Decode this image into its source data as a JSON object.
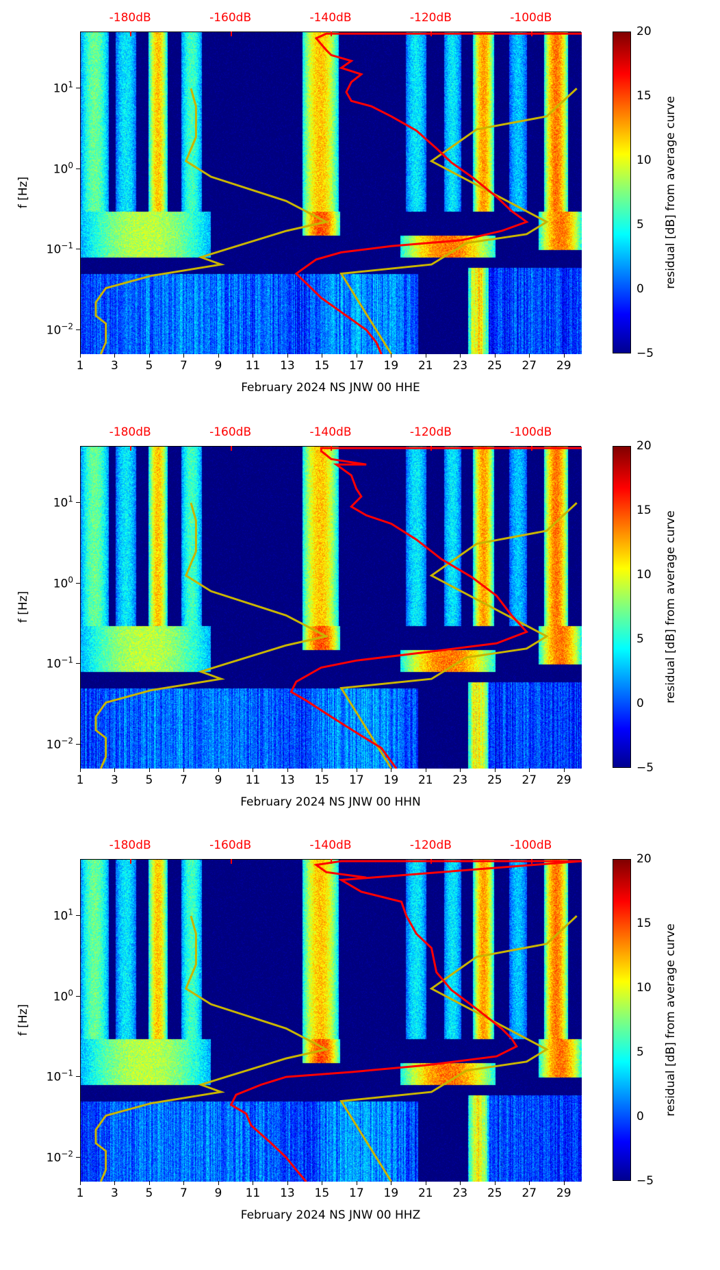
{
  "chart_data": [
    {
      "type": "heatmap",
      "title": "",
      "xlabel": "February 2024 NS JNW 00 HHE",
      "ylabel": "f [Hz]",
      "colorbar_label": "residual [dB] from average curve",
      "xlim": [
        1,
        30
      ],
      "ylim": [
        0.005,
        50
      ],
      "yscale": "log",
      "clim": [
        -5,
        20
      ],
      "red_curve": {
        "db": [
          -90,
          -141,
          -143,
          -141,
          -140,
          -136,
          -138,
          -134,
          -136,
          -137,
          -136,
          -132,
          -128,
          -123,
          -119,
          -116,
          -112,
          -107,
          -104,
          -101,
          -106,
          -114,
          -128,
          -138,
          -143,
          -147,
          -145,
          -142,
          -137,
          -133,
          -131,
          -130
        ],
        "f": [
          48,
          48,
          42,
          30,
          26,
          22,
          18,
          15,
          12,
          9,
          7,
          6,
          4.5,
          3,
          1.8,
          1.2,
          0.8,
          0.45,
          0.3,
          0.22,
          0.17,
          0.13,
          0.11,
          0.092,
          0.075,
          0.05,
          0.038,
          0.025,
          0.015,
          0.01,
          0.007,
          0.005
        ]
      }
    },
    {
      "type": "heatmap",
      "title": "",
      "xlabel": "February 2024 NS JNW 00 HHN",
      "ylabel": "f [Hz]",
      "colorbar_label": "residual [dB] from average curve",
      "xlim": [
        1,
        30
      ],
      "ylim": [
        0.005,
        50
      ],
      "yscale": "log",
      "clim": [
        -5,
        20
      ],
      "red_curve": {
        "db": [
          -90,
          -142,
          -142,
          -140,
          -133,
          -139,
          -136,
          -135,
          -134,
          -136,
          -133,
          -128,
          -123,
          -118,
          -112,
          -107,
          -104,
          -101,
          -107,
          -121,
          -135,
          -142,
          -147,
          -148,
          -145,
          -140,
          -135,
          -130,
          -127
        ],
        "f": [
          48,
          48,
          44,
          35,
          30,
          30,
          22,
          15,
          12,
          9,
          7,
          5.5,
          3.5,
          2,
          1.2,
          0.7,
          0.4,
          0.25,
          0.18,
          0.14,
          0.11,
          0.09,
          0.06,
          0.045,
          0.035,
          0.022,
          0.014,
          0.009,
          0.005
        ]
      }
    },
    {
      "type": "heatmap",
      "title": "",
      "xlabel": "February 2024 NS JNW 00 HHZ",
      "ylabel": "f [Hz]",
      "colorbar_label": "residual [dB] from average curve",
      "xlim": [
        1,
        30
      ],
      "ylim": [
        0.005,
        50
      ],
      "yscale": "log",
      "clim": [
        -5,
        20
      ],
      "red_curve": {
        "db": [
          -133,
          -141,
          -143,
          -138,
          -90,
          -90,
          -138,
          -134,
          -126,
          -125,
          -123,
          -120,
          -119,
          -116,
          -111,
          -106,
          -104,
          -103,
          -107,
          -121,
          -136,
          -149,
          -154,
          -159,
          -160,
          -157,
          -156,
          -152,
          -149,
          -147,
          -145
        ],
        "f": [
          30,
          35,
          43,
          48,
          48,
          48,
          28,
          20,
          15,
          10,
          6,
          4,
          2,
          1.2,
          0.7,
          0.4,
          0.3,
          0.24,
          0.18,
          0.14,
          0.115,
          0.1,
          0.08,
          0.06,
          0.045,
          0.035,
          0.025,
          0.015,
          0.01,
          0.007,
          0.005
        ]
      }
    }
  ],
  "shared": {
    "x_ticks": [
      "1",
      "3",
      "5",
      "7",
      "9",
      "11",
      "13",
      "15",
      "17",
      "19",
      "21",
      "23",
      "25",
      "27",
      "29"
    ],
    "y_ticks": [
      {
        "value": 0.01,
        "base": "10",
        "exp": "−2"
      },
      {
        "value": 0.1,
        "base": "10",
        "exp": "−1"
      },
      {
        "value": 1,
        "base": "10",
        "exp": "0"
      },
      {
        "value": 10,
        "base": "10",
        "exp": "1"
      }
    ],
    "top_axis": {
      "labels": [
        "-180dB",
        "-160dB",
        "-140dB",
        "-120dB",
        "-100dB"
      ],
      "values_db": [
        -180,
        -160,
        -140,
        -120,
        -100
      ],
      "color": "#ff0000"
    },
    "colorbar_ticks": [
      "−5",
      "0",
      "5",
      "10",
      "15",
      "20"
    ],
    "low_noise_model": {
      "db": [
        -168,
        -167,
        -167,
        -169,
        -164,
        -149,
        -141,
        -149,
        -161,
        -166,
        -162,
        -176,
        -185,
        -187,
        -187,
        -185,
        -185,
        -186
      ],
      "f": [
        10,
        6,
        2.5,
        1.25,
        0.8,
        0.4,
        0.22,
        0.17,
        0.1,
        0.08,
        0.065,
        0.047,
        0.033,
        0.022,
        0.015,
        0.012,
        0.007,
        0.005
      ],
      "color": "#c8b400"
    },
    "high_noise_model": {
      "db": [
        -91,
        -97,
        -111,
        -120,
        -97,
        -101,
        -113,
        -120,
        -138,
        -128
      ],
      "f": [
        10,
        4.5,
        3.1,
        1.25,
        0.22,
        0.155,
        0.12,
        0.065,
        0.05,
        0.005
      ],
      "color": "#c8b400"
    },
    "activity_bands": [
      {
        "days": [
          1,
          2.6
        ],
        "fmin": 0.3,
        "fmax": 50,
        "level": 9
      },
      {
        "days": [
          3,
          4.2
        ],
        "fmin": 0.3,
        "fmax": 50,
        "level": 6
      },
      {
        "days": [
          4.9,
          6
        ],
        "fmin": 0.3,
        "fmax": 50,
        "level": 14
      },
      {
        "days": [
          6.8,
          8
        ],
        "fmin": 0.3,
        "fmax": 50,
        "level": 8
      },
      {
        "days": [
          13.8,
          15.9
        ],
        "fmin": 0.3,
        "fmax": 50,
        "level": 14
      },
      {
        "days": [
          19.8,
          21
        ],
        "fmin": 0.3,
        "fmax": 50,
        "level": 6
      },
      {
        "days": [
          22,
          23
        ],
        "fmin": 0.3,
        "fmax": 50,
        "level": 6
      },
      {
        "days": [
          23.7,
          24.9
        ],
        "fmin": 0.3,
        "fmax": 50,
        "level": 15
      },
      {
        "days": [
          25.8,
          26.8
        ],
        "fmin": 0.3,
        "fmax": 50,
        "level": 5
      },
      {
        "days": [
          27.8,
          29.2
        ],
        "fmin": 0.3,
        "fmax": 50,
        "level": 16
      },
      {
        "days": [
          1,
          8.5
        ],
        "fmin": 0.08,
        "fmax": 0.3,
        "level": 11
      },
      {
        "days": [
          13.8,
          16
        ],
        "fmin": 0.15,
        "fmax": 0.3,
        "level": 17
      },
      {
        "days": [
          19.5,
          25
        ],
        "fmin": 0.08,
        "fmax": 0.15,
        "level": 16
      },
      {
        "days": [
          27.5,
          30
        ],
        "fmin": 0.1,
        "fmax": 0.3,
        "level": 16
      },
      {
        "days": [
          1,
          14
        ],
        "fmin": 0.005,
        "fmax": 0.05,
        "level": 3
      },
      {
        "days": [
          14,
          20.5
        ],
        "fmin": 0.005,
        "fmax": 0.05,
        "level": 4
      },
      {
        "days": [
          23.4,
          24.6
        ],
        "fmin": 0.005,
        "fmax": 0.06,
        "level": 13
      },
      {
        "days": [
          24.6,
          30
        ],
        "fmin": 0.005,
        "fmax": 0.06,
        "level": 2
      }
    ]
  }
}
